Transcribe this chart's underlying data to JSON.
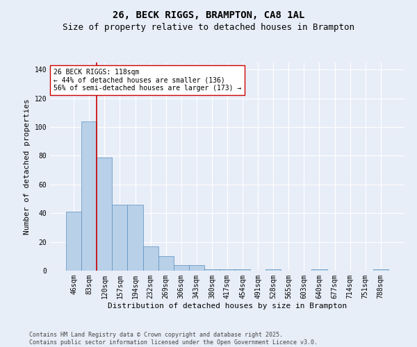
{
  "title": "26, BECK RIGGS, BRAMPTON, CA8 1AL",
  "subtitle": "Size of property relative to detached houses in Brampton",
  "xlabel": "Distribution of detached houses by size in Brampton",
  "ylabel": "Number of detached properties",
  "categories": [
    "46sqm",
    "83sqm",
    "120sqm",
    "157sqm",
    "194sqm",
    "232sqm",
    "269sqm",
    "306sqm",
    "343sqm",
    "380sqm",
    "417sqm",
    "454sqm",
    "491sqm",
    "528sqm",
    "565sqm",
    "603sqm",
    "640sqm",
    "677sqm",
    "714sqm",
    "751sqm",
    "788sqm"
  ],
  "values": [
    41,
    104,
    79,
    46,
    46,
    17,
    10,
    4,
    4,
    1,
    1,
    1,
    0,
    1,
    0,
    0,
    1,
    0,
    0,
    0,
    1
  ],
  "bar_color": "#b8d0e8",
  "bar_edge_color": "#5a8fbf",
  "background_color": "#e8eef8",
  "grid_color": "#ffffff",
  "vline_color": "#cc0000",
  "annotation_text": "26 BECK RIGGS: 118sqm\n← 44% of detached houses are smaller (136)\n56% of semi-detached houses are larger (173) →",
  "annotation_box_color": "#ffffff",
  "annotation_box_edge": "#cc0000",
  "ylim": [
    0,
    145
  ],
  "yticks": [
    0,
    20,
    40,
    60,
    80,
    100,
    120,
    140
  ],
  "footer": "Contains HM Land Registry data © Crown copyright and database right 2025.\nContains public sector information licensed under the Open Government Licence v3.0.",
  "title_fontsize": 10,
  "subtitle_fontsize": 9,
  "xlabel_fontsize": 8,
  "ylabel_fontsize": 8,
  "tick_fontsize": 7,
  "annotation_fontsize": 7,
  "footer_fontsize": 6
}
